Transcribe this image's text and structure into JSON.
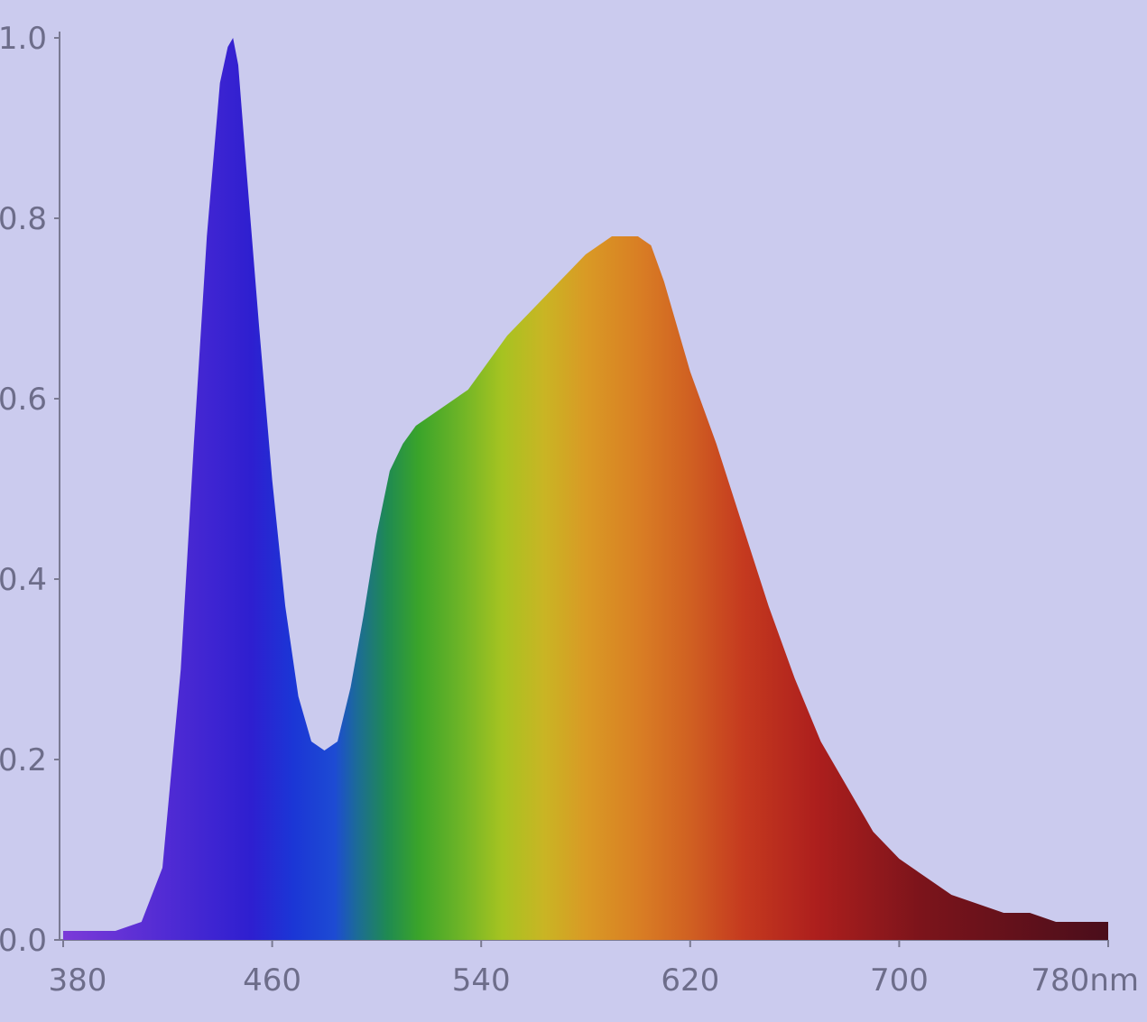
{
  "chart_data": {
    "type": "area",
    "title": "",
    "xlabel": "",
    "ylabel": "",
    "x_unit": "nm",
    "xlim": [
      380,
      780
    ],
    "ylim": [
      0,
      1.0
    ],
    "x_ticks": [
      "380",
      "460",
      "540",
      "620",
      "700",
      "780nm"
    ],
    "x_tick_values": [
      380,
      460,
      540,
      620,
      700,
      780
    ],
    "y_ticks": [
      "0.0",
      "0.2",
      "0.4",
      "0.6",
      "0.8",
      "1.0"
    ],
    "y_tick_values": [
      0.0,
      0.2,
      0.4,
      0.6,
      0.8,
      1.0
    ],
    "grid": false,
    "legend": "none",
    "fill": "wavelength-colored spectrum",
    "background_color": "#cbcbee",
    "series": [
      {
        "x": [
          380,
          390,
          400,
          410,
          418,
          425,
          430,
          435,
          440,
          443,
          445,
          447,
          450,
          455,
          460,
          465,
          470,
          475,
          480,
          485,
          490,
          495,
          500,
          505,
          510,
          515,
          520,
          525,
          530,
          535,
          540,
          550,
          560,
          570,
          580,
          590,
          600,
          605,
          610,
          615,
          620,
          630,
          640,
          650,
          660,
          670,
          680,
          690,
          700,
          710,
          720,
          730,
          740,
          750,
          760,
          770,
          780
        ],
        "y": [
          0.01,
          0.01,
          0.01,
          0.02,
          0.08,
          0.3,
          0.55,
          0.78,
          0.95,
          0.99,
          1.0,
          0.97,
          0.86,
          0.68,
          0.51,
          0.37,
          0.27,
          0.22,
          0.21,
          0.22,
          0.28,
          0.36,
          0.45,
          0.52,
          0.55,
          0.57,
          0.58,
          0.59,
          0.6,
          0.61,
          0.63,
          0.67,
          0.7,
          0.73,
          0.76,
          0.78,
          0.78,
          0.77,
          0.73,
          0.68,
          0.63,
          0.55,
          0.46,
          0.37,
          0.29,
          0.22,
          0.17,
          0.12,
          0.09,
          0.07,
          0.05,
          0.04,
          0.03,
          0.03,
          0.02,
          0.02,
          0.02
        ]
      }
    ]
  }
}
